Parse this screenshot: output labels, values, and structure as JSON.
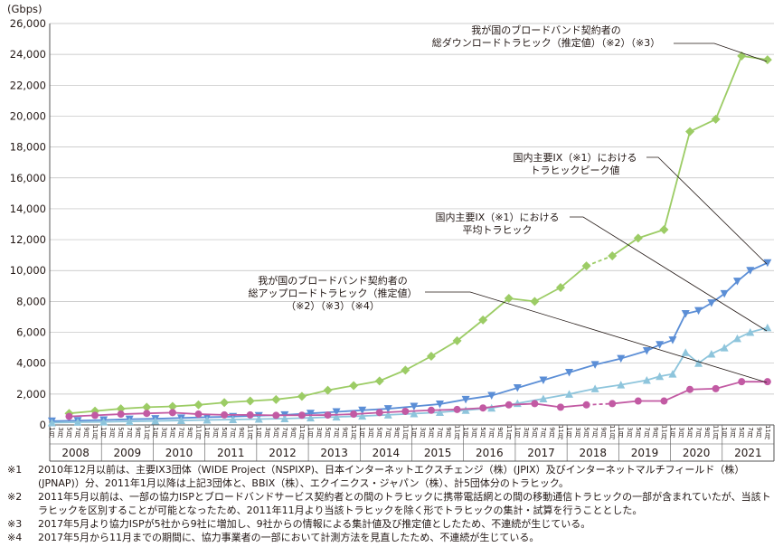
{
  "chart_data": {
    "type": "line",
    "unit_label": "(Gbps)",
    "ylim": [
      0,
      26000
    ],
    "y_ticks": [
      "0",
      "2,000",
      "4,000",
      "6,000",
      "8,000",
      "10,000",
      "12,000",
      "14,000",
      "16,000",
      "18,000",
      "20,000",
      "22,000",
      "24,000",
      "26,000"
    ],
    "years": [
      "2008",
      "2009",
      "2010",
      "2011",
      "2012",
      "2013",
      "2014",
      "2015",
      "2016",
      "2017",
      "2018",
      "2019",
      "2020",
      "2021"
    ],
    "month_labels": [
      "1月",
      "3月",
      "5月",
      "7月",
      "9月",
      "11月"
    ],
    "series": [
      {
        "name": "我が国のブロードバンド契約者の総ダウンロードトラヒック（推定値）（※2）（※3）",
        "color": "#9ccc65",
        "marker": "diamond",
        "dashed_segments": [
          [
            20,
            21
          ],
          [
            28,
            29
          ]
        ],
        "x": [
          "2008-05",
          "2008-11",
          "2009-05",
          "2009-11",
          "2010-05",
          "2010-11",
          "2011-05",
          "2011-11",
          "2012-05",
          "2012-11",
          "2013-05",
          "2013-11",
          "2014-05",
          "2014-11",
          "2015-05",
          "2015-11",
          "2016-05",
          "2016-11",
          "2017-05",
          "2017-11",
          "2018-05",
          "2018-11",
          "2019-05",
          "2019-11",
          "2020-05",
          "2020-11",
          "2021-05",
          "2021-11"
        ],
        "values": [
          750,
          900,
          1050,
          1150,
          1200,
          1300,
          1450,
          1550,
          1650,
          1850,
          2250,
          2550,
          2850,
          3550,
          4450,
          5450,
          6800,
          8200,
          8000,
          8900,
          10300,
          10950,
          12100,
          12650,
          19000,
          19800,
          23900,
          23650
        ]
      },
      {
        "name": "国内主要IX（※1）におけるトラヒックピーク値",
        "color": "#5b8ed6",
        "marker": "triangle-down",
        "x": [
          "2008-01",
          "2008-07",
          "2009-01",
          "2009-07",
          "2010-01",
          "2010-07",
          "2011-01",
          "2011-07",
          "2012-01",
          "2012-07",
          "2013-01",
          "2013-07",
          "2014-01",
          "2014-07",
          "2015-01",
          "2015-07",
          "2016-01",
          "2016-07",
          "2017-01",
          "2017-07",
          "2018-01",
          "2018-07",
          "2019-01",
          "2019-07",
          "2019-10",
          "2020-01",
          "2020-04",
          "2020-07",
          "2020-10",
          "2021-01",
          "2021-04",
          "2021-07",
          "2021-11"
        ],
        "values": [
          250,
          280,
          320,
          370,
          400,
          450,
          500,
          540,
          600,
          650,
          750,
          850,
          950,
          1050,
          1200,
          1350,
          1650,
          1900,
          2400,
          2900,
          3400,
          3900,
          4300,
          4800,
          5200,
          5500,
          7200,
          7400,
          7900,
          8500,
          9300,
          10000,
          10500
        ]
      },
      {
        "name": "国内主要IX（※1）における平均トラヒック",
        "color": "#8ec5dc",
        "marker": "triangle-up",
        "x": [
          "2008-01",
          "2008-07",
          "2009-01",
          "2009-07",
          "2010-01",
          "2010-07",
          "2011-01",
          "2011-07",
          "2012-01",
          "2012-07",
          "2013-01",
          "2013-07",
          "2014-01",
          "2014-07",
          "2015-01",
          "2015-07",
          "2016-01",
          "2016-07",
          "2017-01",
          "2017-07",
          "2018-01",
          "2018-07",
          "2019-01",
          "2019-07",
          "2019-10",
          "2020-01",
          "2020-04",
          "2020-07",
          "2020-10",
          "2021-01",
          "2021-04",
          "2021-07",
          "2021-11"
        ],
        "values": [
          150,
          180,
          200,
          230,
          260,
          290,
          320,
          350,
          380,
          410,
          460,
          520,
          580,
          650,
          730,
          820,
          950,
          1100,
          1400,
          1700,
          2000,
          2350,
          2600,
          2900,
          3150,
          3300,
          4700,
          4000,
          4600,
          5000,
          5600,
          6000,
          6300
        ]
      },
      {
        "name": "我が国のブロードバンド契約者の総アップロードトラヒック（推定値）（※2）（※3）（※4）",
        "color": "#c25aa3",
        "marker": "circle",
        "dashed_segments": [
          [
            20,
            21
          ],
          [
            28,
            29
          ]
        ],
        "x": [
          "2008-05",
          "2008-11",
          "2009-05",
          "2009-11",
          "2010-05",
          "2010-11",
          "2011-05",
          "2011-11",
          "2012-05",
          "2012-11",
          "2013-05",
          "2013-11",
          "2014-05",
          "2014-11",
          "2015-05",
          "2015-11",
          "2016-05",
          "2016-11",
          "2017-05",
          "2017-11",
          "2018-05",
          "2018-11",
          "2019-05",
          "2019-11",
          "2020-05",
          "2020-11",
          "2021-05",
          "2021-11"
        ],
        "values": [
          550,
          620,
          700,
          750,
          800,
          700,
          650,
          650,
          620,
          630,
          640,
          700,
          800,
          880,
          950,
          1000,
          1100,
          1300,
          1380,
          1150,
          1300,
          1380,
          1550,
          1550,
          2300,
          2350,
          2800,
          2800
        ]
      }
    ],
    "annotations": [
      {
        "lines": [
          "我が国のブロードバンド契約者の",
          "総ダウンロードトラヒック（推定値）（※2）（※3）"
        ]
      },
      {
        "lines": [
          "国内主要IX（※1）における",
          "トラヒックピーク値"
        ]
      },
      {
        "lines": [
          "国内主要IX（※1）における",
          "平均トラヒック"
        ]
      },
      {
        "lines": [
          "我が国のブロードバンド契約者の",
          "総アップロードトラヒック（推定値）",
          "（※2）（※3）（※4）"
        ]
      }
    ]
  },
  "notes": [
    {
      "mark": "※1",
      "text": "2010年12月以前は、主要IX3団体（WIDE Project（NSPIXP)、日本インターネットエクスチェンジ（株）(JPIX）及びインターネットマルチフィールド（株）(JPNAP)）分、2011年1月以降は上記3団体と、BBIX（株）、エクイニクス・ジャパン（株）、計5団体分のトラヒック。"
    },
    {
      "mark": "※2",
      "text": "2011年5月以前は、一部の協力ISPとブロードバンドサービス契約者との間のトラヒックに携帯電話網との間の移動通信トラヒックの一部が含まれていたが、当該トラヒックを区別することが可能となったため、2011年11月より当該トラヒックを除く形でトラヒックの集計・試算を行うこととした。"
    },
    {
      "mark": "※3",
      "text": "2017年5月より協力ISPが5社から9社に増加し、9社からの情報による集計値及び推定値としたため、不連続が生じている。"
    },
    {
      "mark": "※4",
      "text": "2017年5月から11月までの期間に、協力事業者の一部において計測方法を見直したため、不連続が生じている。"
    }
  ]
}
